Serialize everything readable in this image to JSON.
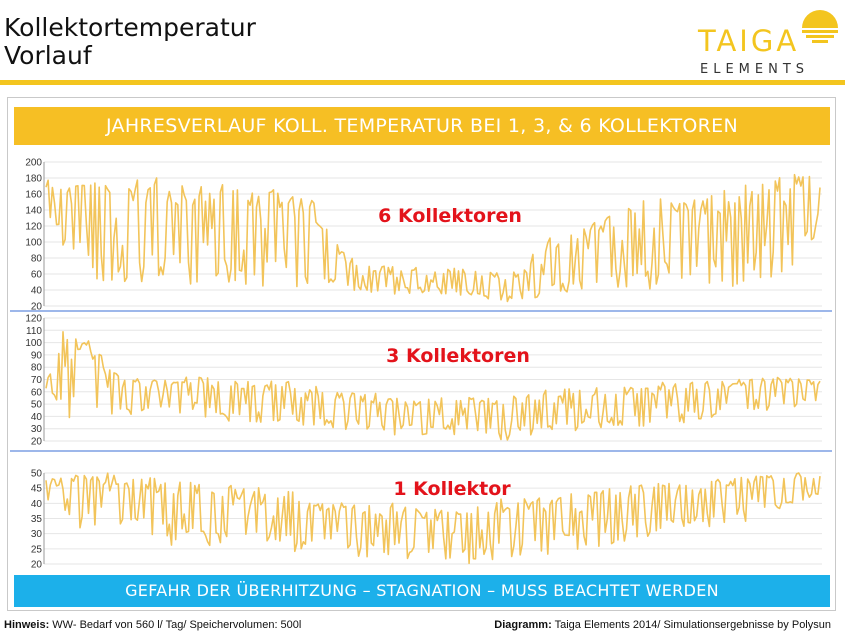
{
  "header": {
    "title_line1": "Kollektortemperatur",
    "title_line2": "Vorlauf",
    "logo_text_top": "TAIGA",
    "logo_text_bottom": "ELEMENTS",
    "accent_color": "#f3c51f"
  },
  "banner_top": {
    "text": "JAHRESVERLAUF KOLL. TEMPERATUR BEI 1, 3, & 6 KOLLEKTOREN",
    "color": "#f6bf24"
  },
  "banner_bottom": {
    "text": "GEFAHR DER ÜBERHITZUNG – STAGNATION – MUSS BEACHTET WERDEN",
    "color": "#1cb0ea"
  },
  "footer": {
    "left_label": "Hinweis:",
    "left_text": " WW- Bedarf von 560 l/ Tag/ Speichervolumen: 500l",
    "right_label": "Diagramm:",
    "right_text": " Taiga Elements 2014/ Simulationsergebnisse by Polysun"
  },
  "chart_data": [
    {
      "type": "line",
      "label": "6 Kollektoren",
      "ylim": [
        20,
        200
      ],
      "yticks": [
        "20",
        "40",
        "60",
        "80",
        "100",
        "120",
        "140",
        "160",
        "180",
        "200"
      ],
      "line_color": "#f2c45a",
      "grid": true,
      "envelope": [
        [
          0,
          130,
          180
        ],
        [
          0.05,
          50,
          180
        ],
        [
          0.1,
          40,
          180
        ],
        [
          0.15,
          50,
          180
        ],
        [
          0.2,
          45,
          175
        ],
        [
          0.25,
          45,
          170
        ],
        [
          0.3,
          40,
          165
        ],
        [
          0.35,
          40,
          150
        ],
        [
          0.38,
          35,
          90
        ],
        [
          0.42,
          35,
          70
        ],
        [
          0.5,
          35,
          70
        ],
        [
          0.55,
          30,
          65
        ],
        [
          0.6,
          25,
          60
        ],
        [
          0.65,
          25,
          105
        ],
        [
          0.7,
          40,
          120
        ],
        [
          0.75,
          40,
          150
        ],
        [
          0.8,
          40,
          155
        ],
        [
          0.85,
          40,
          160
        ],
        [
          0.9,
          45,
          170
        ],
        [
          0.95,
          60,
          185
        ],
        [
          1,
          100,
          190
        ]
      ]
    },
    {
      "type": "line",
      "label": "3 Kollektoren",
      "ylim": [
        20,
        120
      ],
      "yticks": [
        "20",
        "30",
        "40",
        "50",
        "60",
        "70",
        "80",
        "90",
        "100",
        "110",
        "120"
      ],
      "line_color": "#f2c45a",
      "grid": true,
      "envelope": [
        [
          0,
          60,
          70
        ],
        [
          0.02,
          40,
          115
        ],
        [
          0.05,
          35,
          105
        ],
        [
          0.1,
          40,
          70
        ],
        [
          0.15,
          40,
          72
        ],
        [
          0.2,
          38,
          72
        ],
        [
          0.25,
          35,
          70
        ],
        [
          0.3,
          35,
          70
        ],
        [
          0.35,
          30,
          65
        ],
        [
          0.4,
          28,
          60
        ],
        [
          0.45,
          25,
          58
        ],
        [
          0.5,
          25,
          55
        ],
        [
          0.55,
          25,
          58
        ],
        [
          0.6,
          20,
          58
        ],
        [
          0.65,
          25,
          62
        ],
        [
          0.7,
          30,
          65
        ],
        [
          0.75,
          30,
          65
        ],
        [
          0.8,
          35,
          68
        ],
        [
          0.85,
          35,
          70
        ],
        [
          0.9,
          38,
          70
        ],
        [
          0.95,
          45,
          72
        ],
        [
          1,
          50,
          70
        ]
      ]
    },
    {
      "type": "line",
      "label": "1 Kollektor",
      "ylim": [
        20,
        50
      ],
      "yticks": [
        "20",
        "25",
        "30",
        "35",
        "40",
        "45",
        "50"
      ],
      "line_color": "#f2c45a",
      "grid": true,
      "envelope": [
        [
          0,
          40,
          48
        ],
        [
          0.05,
          30,
          50
        ],
        [
          0.1,
          30,
          50
        ],
        [
          0.15,
          25,
          48
        ],
        [
          0.2,
          25,
          48
        ],
        [
          0.25,
          25,
          46
        ],
        [
          0.3,
          25,
          45
        ],
        [
          0.35,
          23,
          42
        ],
        [
          0.4,
          22,
          40
        ],
        [
          0.45,
          22,
          40
        ],
        [
          0.5,
          21,
          38
        ],
        [
          0.55,
          20,
          40
        ],
        [
          0.6,
          22,
          42
        ],
        [
          0.65,
          23,
          43
        ],
        [
          0.7,
          25,
          44
        ],
        [
          0.75,
          27,
          46
        ],
        [
          0.8,
          30,
          47
        ],
        [
          0.85,
          32,
          48
        ],
        [
          0.9,
          33,
          49
        ],
        [
          0.95,
          38,
          50
        ],
        [
          1,
          42,
          50
        ]
      ]
    }
  ]
}
